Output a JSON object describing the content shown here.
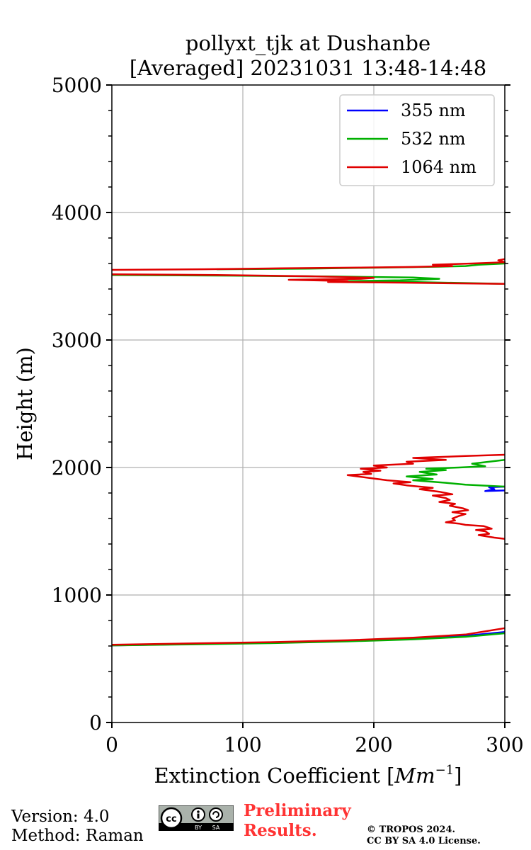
{
  "chart_data": {
    "type": "line",
    "title": [
      "pollyxt_tjk at Dushanbe",
      "[Averaged] 20231031 13:48-14:48"
    ],
    "xlabel": "Extinction Coefficient [",
    "xlabel_unit": "Mm",
    "xlabel_exp": "−1",
    "xlabel_end": "]",
    "ylabel": "Height (m)",
    "xlim": [
      0,
      300
    ],
    "ylim": [
      0,
      5000
    ],
    "xticks": [
      0,
      100,
      200,
      300
    ],
    "xtick_labels": [
      "0",
      "100",
      "200",
      "300"
    ],
    "yticks": [
      0,
      1000,
      2000,
      3000,
      4000,
      5000
    ],
    "ytick_labels": [
      "0",
      "1000",
      "2000",
      "3000",
      "4000",
      "5000"
    ],
    "grid": true,
    "legend_position": "top-right",
    "series": [
      {
        "name": "355 nm",
        "color": "#0000ff",
        "segments": [
          [
            [
              0,
              605
            ],
            [
              60,
              615
            ],
            [
              120,
              625
            ],
            [
              180,
              640
            ],
            [
              230,
              660
            ],
            [
              270,
              680
            ],
            [
              300,
              710
            ]
          ],
          [
            [
              300,
              1820
            ],
            [
              285,
              1815
            ],
            [
              292,
              1830
            ],
            [
              288,
              1845
            ],
            [
              300,
              1850
            ]
          ]
        ]
      },
      {
        "name": "532 nm",
        "color": "#00b000",
        "segments": [
          [
            [
              0,
              605
            ],
            [
              60,
              613
            ],
            [
              120,
              622
            ],
            [
              180,
              636
            ],
            [
              230,
              652
            ],
            [
              270,
              672
            ],
            [
              300,
              700
            ]
          ],
          [
            [
              300,
              1850
            ],
            [
              270,
              1865
            ],
            [
              255,
              1880
            ],
            [
              230,
              1900
            ],
            [
              245,
              1910
            ],
            [
              225,
              1930
            ],
            [
              248,
              1945
            ],
            [
              235,
              1965
            ],
            [
              255,
              1980
            ],
            [
              240,
              1990
            ],
            [
              265,
              2000
            ],
            [
              285,
              2010
            ],
            [
              275,
              2030
            ],
            [
              300,
              2060
            ]
          ],
          [
            [
              0,
              3510
            ],
            [
              90,
              3505
            ],
            [
              170,
              3498
            ],
            [
              230,
              3490
            ],
            [
              250,
              3480
            ],
            [
              220,
              3468
            ],
            [
              170,
              3460
            ],
            [
              230,
              3455
            ],
            [
              300,
              3440
            ]
          ],
          [
            [
              80,
              3555
            ],
            [
              150,
              3560
            ],
            [
              220,
              3570
            ],
            [
              250,
              3575
            ],
            [
              270,
              3580
            ],
            [
              280,
              3590
            ],
            [
              300,
              3600
            ]
          ]
        ]
      },
      {
        "name": "1064 nm",
        "color": "#e00000",
        "segments": [
          [
            [
              0,
              610
            ],
            [
              60,
              620
            ],
            [
              120,
              630
            ],
            [
              180,
              645
            ],
            [
              230,
              665
            ],
            [
              270,
              690
            ],
            [
              300,
              740
            ]
          ],
          [
            [
              300,
              1440
            ],
            [
              292,
              1450
            ],
            [
              280,
              1470
            ],
            [
              288,
              1480
            ],
            [
              285,
              1500
            ],
            [
              278,
              1510
            ],
            [
              290,
              1520
            ],
            [
              284,
              1540
            ],
            [
              270,
              1550
            ],
            [
              265,
              1560
            ],
            [
              255,
              1570
            ],
            [
              262,
              1585
            ],
            [
              260,
              1600
            ],
            [
              265,
              1620
            ],
            [
              270,
              1635
            ],
            [
              260,
              1650
            ],
            [
              272,
              1665
            ],
            [
              268,
              1680
            ],
            [
              258,
              1700
            ],
            [
              262,
              1715
            ],
            [
              250,
              1730
            ],
            [
              258,
              1745
            ],
            [
              255,
              1760
            ],
            [
              245,
              1780
            ],
            [
              260,
              1790
            ],
            [
              250,
              1810
            ],
            [
              235,
              1830
            ],
            [
              245,
              1840
            ],
            [
              225,
              1860
            ],
            [
              215,
              1875
            ],
            [
              228,
              1885
            ],
            [
              210,
              1900
            ],
            [
              195,
              1920
            ],
            [
              180,
              1940
            ],
            [
              198,
              1950
            ],
            [
              192,
              1965
            ],
            [
              205,
              1975
            ],
            [
              190,
              1990
            ],
            [
              210,
              2000
            ],
            [
              200,
              2015
            ],
            [
              230,
              2030
            ],
            [
              225,
              2045
            ],
            [
              255,
              2060
            ],
            [
              230,
              2075
            ],
            [
              270,
              2090
            ],
            [
              300,
              2100
            ]
          ],
          [
            [
              0,
              3515
            ],
            [
              80,
              3510
            ],
            [
              150,
              3500
            ],
            [
              200,
              3488
            ],
            [
              190,
              3480
            ],
            [
              135,
              3472
            ],
            [
              180,
              3462
            ],
            [
              165,
              3455
            ],
            [
              220,
              3450
            ],
            [
              300,
              3440
            ]
          ],
          [
            [
              0,
              3550
            ],
            [
              70,
              3555
            ],
            [
              130,
              3562
            ],
            [
              190,
              3568
            ],
            [
              230,
              3573
            ],
            [
              260,
              3580
            ],
            [
              245,
              3590
            ],
            [
              275,
              3600
            ],
            [
              300,
              3610
            ],
            [
              295,
              3625
            ],
            [
              300,
              3635
            ]
          ]
        ]
      }
    ]
  },
  "footer": {
    "version": "Version: 4.0",
    "method": "Method: Raman",
    "preliminary_line1": "Preliminary",
    "preliminary_line2": "Results.",
    "copyright_line1": "© TROPOS 2024.",
    "copyright_line2": "CC BY SA 4.0 License.",
    "cc_label": "cc",
    "by_label": "BY",
    "sa_label": "SA"
  }
}
